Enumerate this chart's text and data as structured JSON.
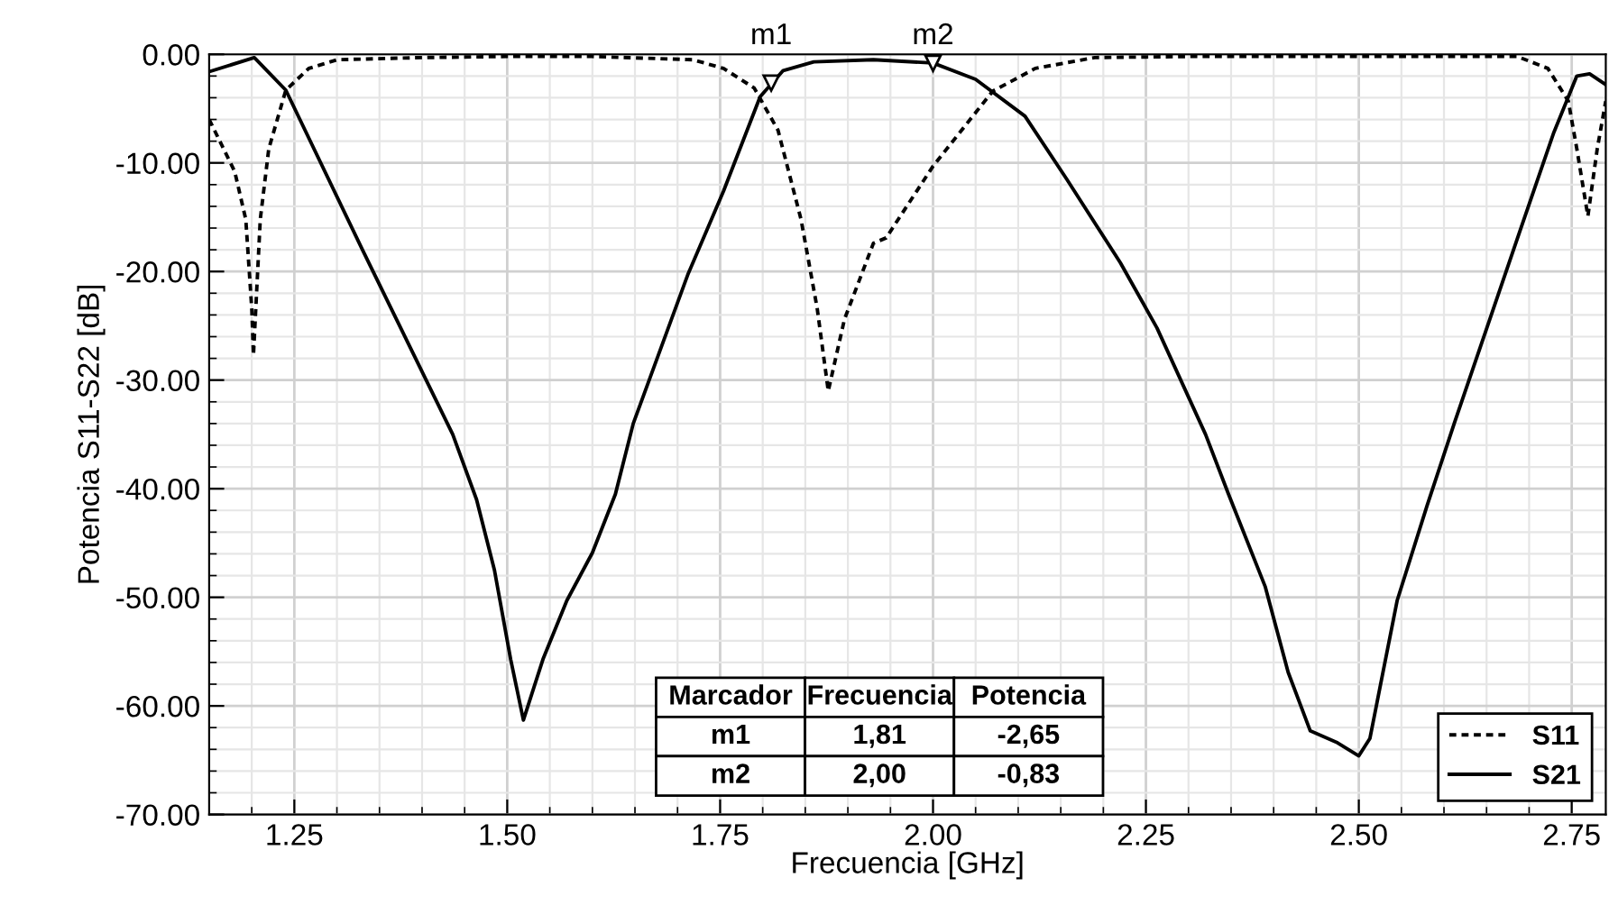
{
  "chart_data": {
    "type": "line",
    "xlabel": "Frecuencia [GHz]",
    "ylabel": "Potencia S11-S22 [dB]",
    "xlim": [
      1.15,
      2.79
    ],
    "ylim": [
      -70,
      0
    ],
    "xticks": [
      {
        "value": 1.25,
        "label": "1.25"
      },
      {
        "value": 1.5,
        "label": "1.50"
      },
      {
        "value": 1.75,
        "label": "1.75"
      },
      {
        "value": 2.0,
        "label": "2.00"
      },
      {
        "value": 2.25,
        "label": "2.25"
      },
      {
        "value": 2.5,
        "label": "2.50"
      },
      {
        "value": 2.75,
        "label": "2.75"
      }
    ],
    "yticks": [
      {
        "value": 0,
        "label": "0.00"
      },
      {
        "value": -10,
        "label": "-10.00"
      },
      {
        "value": -20,
        "label": "-20.00"
      },
      {
        "value": -30,
        "label": "-30.00"
      },
      {
        "value": -40,
        "label": "-40.00"
      },
      {
        "value": -50,
        "label": "-50.00"
      },
      {
        "value": -60,
        "label": "-60.00"
      },
      {
        "value": -70,
        "label": "-70.00"
      }
    ],
    "grid": true,
    "legend": "bottom right",
    "marker": "none",
    "series": [
      {
        "name": "S11",
        "color": "#000000",
        "line_style": "dotted",
        "x": [
          1.15,
          1.18,
          1.193,
          1.2,
          1.202,
          1.21,
          1.22,
          1.24,
          1.267,
          1.3,
          1.4,
          1.5,
          1.6,
          1.718,
          1.754,
          1.79,
          1.818,
          1.845,
          1.864,
          1.877,
          1.896,
          1.93,
          1.945,
          2.0,
          2.07,
          2.12,
          2.19,
          2.3,
          2.4,
          2.5,
          2.6,
          2.686,
          2.722,
          2.746,
          2.756,
          2.769,
          2.78,
          2.79
        ],
        "values": [
          -6,
          -10.8,
          -15.2,
          -23.4,
          -27.7,
          -15.2,
          -8.7,
          -3.3,
          -1.3,
          -0.5,
          -0.3,
          -0.2,
          -0.2,
          -0.5,
          -1.3,
          -3.1,
          -7,
          -15.2,
          -23.4,
          -31,
          -24.4,
          -17.4,
          -16.9,
          -10.3,
          -3.4,
          -1.3,
          -0.3,
          -0.2,
          -0.2,
          -0.2,
          -0.2,
          -0.2,
          -1.3,
          -4.3,
          -8.7,
          -14.9,
          -8.7,
          -4.3
        ]
      },
      {
        "name": "S21",
        "color": "#000000",
        "line_style": "solid",
        "x": [
          1.15,
          1.203,
          1.24,
          1.33,
          1.436,
          1.464,
          1.485,
          1.504,
          1.519,
          1.542,
          1.57,
          1.6,
          1.627,
          1.648,
          1.712,
          1.754,
          1.797,
          1.824,
          1.86,
          1.93,
          2.0,
          2.05,
          2.108,
          2.157,
          2.22,
          2.263,
          2.32,
          2.347,
          2.39,
          2.417,
          2.443,
          2.475,
          2.5,
          2.513,
          2.545,
          2.58,
          2.612,
          2.686,
          2.729,
          2.756,
          2.771,
          2.79
        ],
        "values": [
          -1.6,
          -0.3,
          -3.3,
          -18,
          -35,
          -41,
          -47.5,
          -55.7,
          -61.3,
          -55.7,
          -50.3,
          -45.9,
          -40.5,
          -34,
          -20.3,
          -12.6,
          -3.9,
          -1.5,
          -0.7,
          -0.5,
          -0.8,
          -2.3,
          -5.7,
          -11.5,
          -19.2,
          -25.2,
          -35,
          -40.5,
          -49,
          -56.9,
          -62.3,
          -63.4,
          -64.6,
          -63,
          -50.3,
          -41.6,
          -34,
          -17,
          -7.2,
          -2,
          -1.8,
          -2.8
        ]
      }
    ],
    "annotations": [
      {
        "text": "m1",
        "x": 1.81,
        "y": -2.65
      },
      {
        "text": "m2",
        "x": 2.0,
        "y": -0.83
      },
      "Marcador",
      "Frecuencia",
      "Potencia",
      "m1",
      "1,81",
      "-2,65",
      "m2",
      "2,00",
      "-0,83"
    ]
  }
}
